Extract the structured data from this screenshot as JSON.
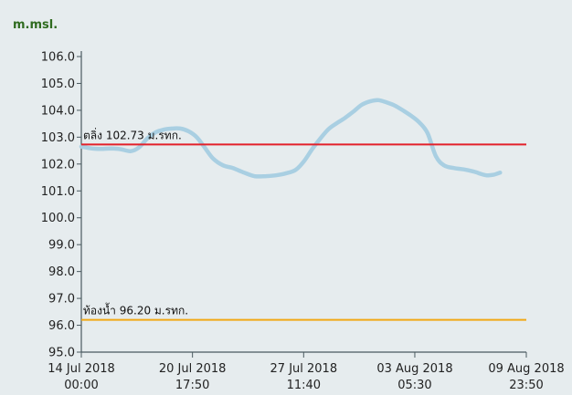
{
  "chart_data": {
    "type": "line",
    "ylabel": "m.msl.",
    "ylim": [
      95.0,
      106.0
    ],
    "y_ticks": [
      "95.0",
      "96.0",
      "97.0",
      "98.0",
      "99.0",
      "100.0",
      "101.0",
      "102.0",
      "103.0",
      "104.0",
      "105.0",
      "106.0"
    ],
    "x_ticks": [
      {
        "date": "14 Jul 2018",
        "time": "00:00",
        "day": 0
      },
      {
        "date": "20 Jul 2018",
        "time": "17:50",
        "day": 6.743
      },
      {
        "date": "27 Jul 2018",
        "time": "11:40",
        "day": 13.486
      },
      {
        "date": "03 Aug 2018",
        "time": "05:30",
        "day": 20.229
      },
      {
        "date": "09 Aug 2018",
        "time": "23:50",
        "day": 26.993
      }
    ],
    "xlim_days": [
      0,
      26.993
    ],
    "reference_lines": [
      {
        "label": "ตลิ่ง 102.73 ม.รทก.",
        "value": 102.73,
        "color": "#e3202a"
      },
      {
        "label": "ท้องน้ำ 96.20 ม.รทก.",
        "value": 96.2,
        "color": "#f1a814"
      }
    ],
    "series": [
      {
        "color": "#a9cfe2",
        "points": [
          [
            0.0,
            102.65
          ],
          [
            0.6,
            102.58
          ],
          [
            1.2,
            102.56
          ],
          [
            1.8,
            102.58
          ],
          [
            2.4,
            102.55
          ],
          [
            3.0,
            102.48
          ],
          [
            3.5,
            102.62
          ],
          [
            4.0,
            102.95
          ],
          [
            4.5,
            103.18
          ],
          [
            5.0,
            103.28
          ],
          [
            5.5,
            103.32
          ],
          [
            6.0,
            103.32
          ],
          [
            6.5,
            103.22
          ],
          [
            7.0,
            103.0
          ],
          [
            7.5,
            102.6
          ],
          [
            8.0,
            102.2
          ],
          [
            8.6,
            101.95
          ],
          [
            9.2,
            101.85
          ],
          [
            9.8,
            101.7
          ],
          [
            10.5,
            101.55
          ],
          [
            11.2,
            101.55
          ],
          [
            11.8,
            101.58
          ],
          [
            12.4,
            101.65
          ],
          [
            13.0,
            101.78
          ],
          [
            13.5,
            102.1
          ],
          [
            14.0,
            102.55
          ],
          [
            14.5,
            102.95
          ],
          [
            15.0,
            103.3
          ],
          [
            15.5,
            103.52
          ],
          [
            16.0,
            103.72
          ],
          [
            16.5,
            103.95
          ],
          [
            17.0,
            104.2
          ],
          [
            17.5,
            104.33
          ],
          [
            18.0,
            104.38
          ],
          [
            18.5,
            104.3
          ],
          [
            19.0,
            104.18
          ],
          [
            19.5,
            104.0
          ],
          [
            20.0,
            103.8
          ],
          [
            20.5,
            103.55
          ],
          [
            21.0,
            103.15
          ],
          [
            21.5,
            102.3
          ],
          [
            22.0,
            101.95
          ],
          [
            22.6,
            101.85
          ],
          [
            23.2,
            101.8
          ],
          [
            23.8,
            101.72
          ],
          [
            24.3,
            101.62
          ],
          [
            24.6,
            101.58
          ],
          [
            25.0,
            101.6
          ],
          [
            25.4,
            101.68
          ]
        ]
      }
    ]
  }
}
